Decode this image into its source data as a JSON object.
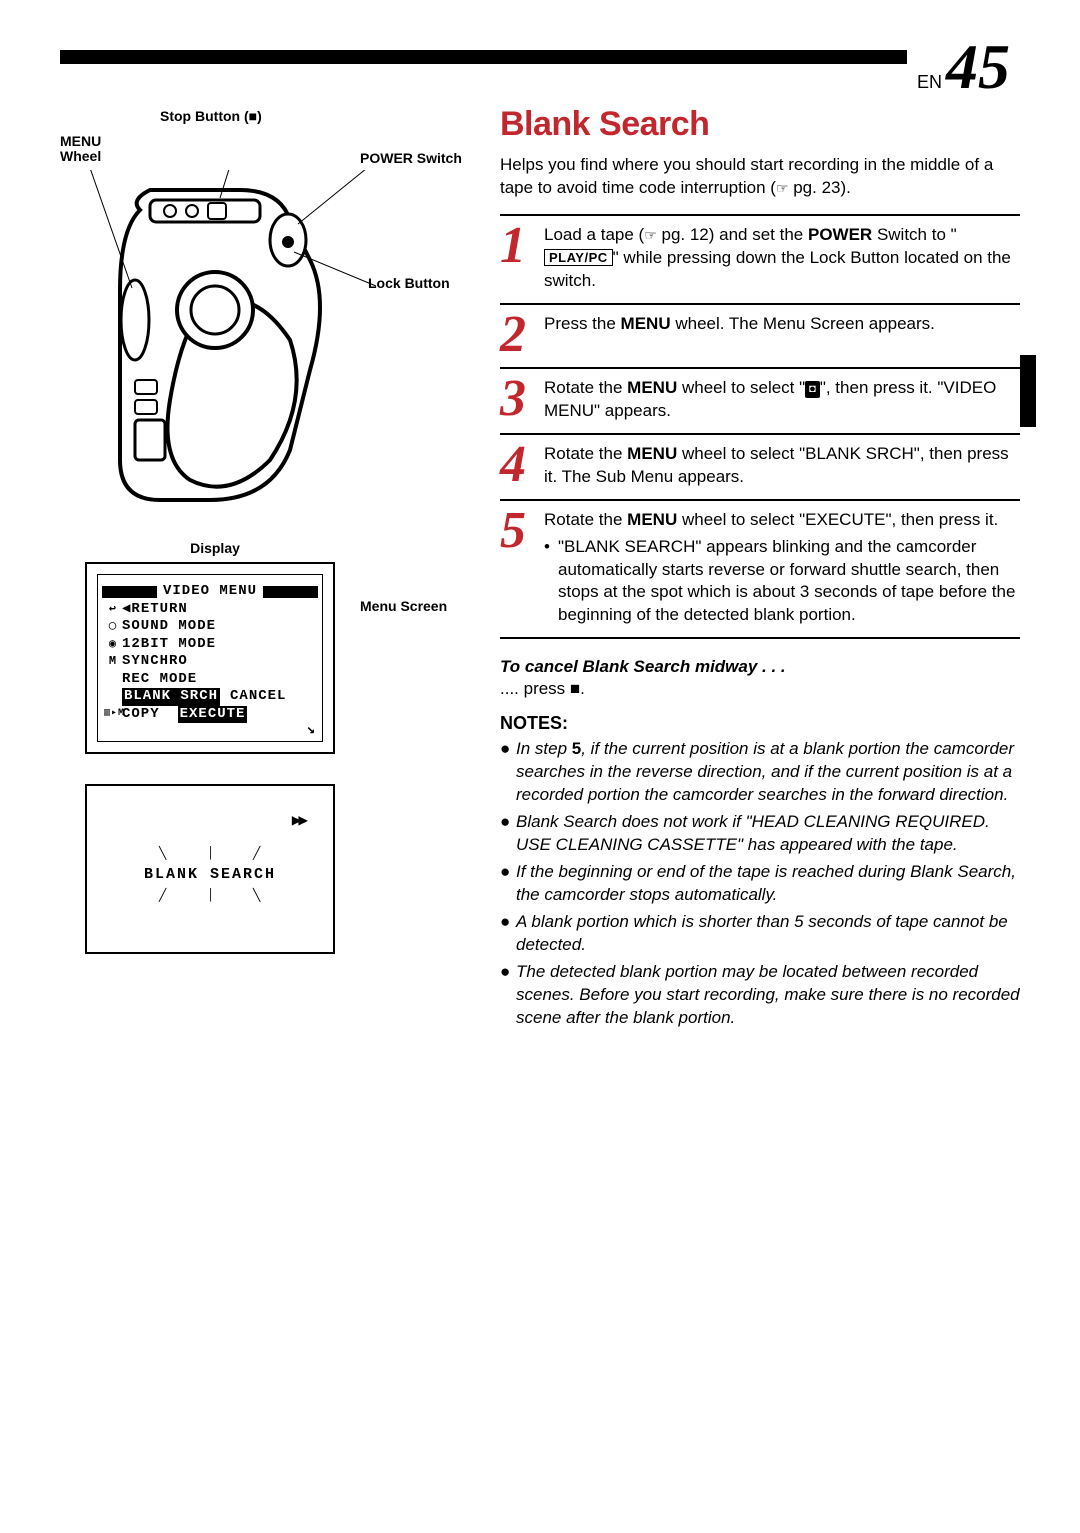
{
  "page": {
    "lang_label": "EN",
    "number": "45"
  },
  "left": {
    "callouts": {
      "stop_button": "Stop Button (■)",
      "menu_wheel_l1": "MENU",
      "menu_wheel_l2": "Wheel",
      "power_switch": "POWER Switch",
      "lock_button": "Lock Button",
      "display": "Display",
      "menu_screen": "Menu Screen"
    },
    "lcd1": {
      "title": "VIDEO MENU",
      "rows": [
        {
          "icon": "↩",
          "text": "◀RETURN"
        },
        {
          "icon": "◯",
          "text": "SOUND MODE"
        },
        {
          "icon": "◉",
          "text": "12BIT MODE"
        },
        {
          "icon": "M",
          "text": "SYNCHRO"
        },
        {
          "icon": "",
          "text": "REC MODE"
        }
      ],
      "row_hl": {
        "left": "BLANK SRCH",
        "right": "CANCEL"
      },
      "row_last": {
        "left_icons": "▥▸M",
        "left_text": "COPY",
        "right_hl": "EXECUTE"
      }
    },
    "lcd2": {
      "ff_symbol": "▶▶",
      "text": "BLANK  SEARCH"
    }
  },
  "right": {
    "title": "Blank Search",
    "intro_a": "Helps you find where you should start recording in the middle of a tape to avoid time code interruption (",
    "intro_pg": " pg. 23).",
    "steps": [
      {
        "n": "1",
        "html_parts": [
          "Load a tape (",
          "HAND",
          " pg. 12) and set the ",
          [
            "b",
            "POWER"
          ],
          " Switch to \"",
          [
            "box",
            "PLAY/PC"
          ],
          "\" while pressing down the Lock Button located on the switch."
        ]
      },
      {
        "n": "2",
        "html_parts": [
          "Press the ",
          [
            "b",
            "MENU"
          ],
          " wheel. The Menu Screen appears."
        ]
      },
      {
        "n": "3",
        "html_parts": [
          "Rotate the ",
          [
            "b",
            "MENU"
          ],
          " wheel to select \"",
          "CHIP",
          "\", then press it. \"VIDEO MENU\" appears."
        ]
      },
      {
        "n": "4",
        "html_parts": [
          "Rotate the ",
          [
            "b",
            "MENU"
          ],
          " wheel to select \"BLANK SRCH\", then press it. The Sub Menu appears."
        ]
      },
      {
        "n": "5",
        "html_parts": [
          "Rotate the ",
          [
            "b",
            "MENU"
          ],
          " wheel to select \"EXECUTE\", then press it."
        ],
        "bullet": "\"BLANK SEARCH\" appears blinking and the camcorder automatically starts reverse or forward shuttle search, then stops at the spot which is about 3 seconds of tape before the beginning of the detected blank portion."
      }
    ],
    "cancel_head": "To cancel Blank Search midway . . .",
    "cancel_body": ".... press ■.",
    "notes_head": "NOTES:",
    "notes": [
      "In step 5, if the current position is at a blank portion the camcorder searches in the reverse direction, and if the current position is at a recorded portion the camcorder searches in the forward direction.",
      "Blank Search does not work if \"HEAD CLEANING REQUIRED. USE CLEANING CASSETTE\" has appeared with the tape.",
      "If the beginning or end of the tape is reached during Blank Search, the camcorder stops automatically.",
      "A blank portion which is shorter than 5 seconds of tape cannot be detected.",
      "The detected blank portion may be located between recorded scenes. Before you start recording, make sure there is no recorded scene after the blank portion."
    ],
    "colors": {
      "accent": "#c1272d"
    }
  }
}
